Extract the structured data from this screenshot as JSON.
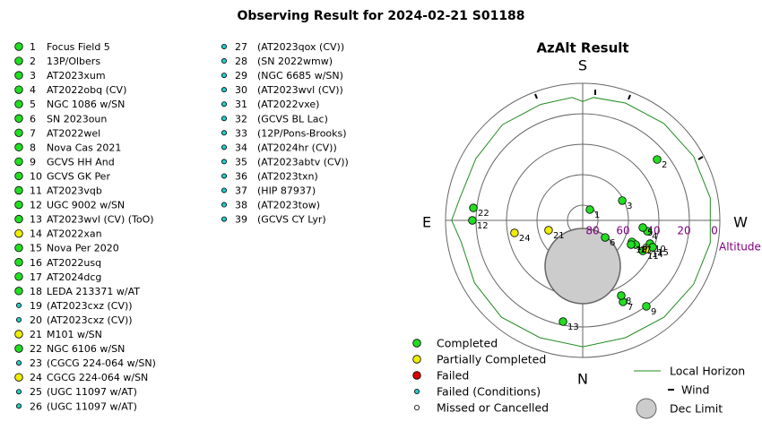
{
  "title": "Observing Result for 2024-02-21 S01188",
  "targets": [
    {
      "number": 1,
      "name": "Focus Field 5",
      "status": 0
    },
    {
      "number": 2,
      "name": "13P/Olbers",
      "status": 0
    },
    {
      "number": 3,
      "name": "AT2023xum",
      "status": 0
    },
    {
      "number": 4,
      "name": "AT2022obq (CV)",
      "status": 0
    },
    {
      "number": 5,
      "name": "NGC 1086 w/SN",
      "status": 0
    },
    {
      "number": 6,
      "name": "SN 2023oun",
      "status": 0
    },
    {
      "number": 7,
      "name": "AT2022wel",
      "status": 0
    },
    {
      "number": 8,
      "name": "Nova Cas 2021",
      "status": 0
    },
    {
      "number": 9,
      "name": "GCVS HH And",
      "status": 0
    },
    {
      "number": 10,
      "name": "GCVS GK Per",
      "status": 0
    },
    {
      "number": 11,
      "name": "AT2023vqb",
      "status": 0
    },
    {
      "number": 12,
      "name": "UGC 9002 w/SN",
      "status": 0
    },
    {
      "number": 13,
      "name": "AT2023wvl (CV) (ToO)",
      "status": 0
    },
    {
      "number": 14,
      "name": "AT2022xan",
      "status": 1
    },
    {
      "number": 15,
      "name": "Nova Per 2020",
      "status": 0
    },
    {
      "number": 16,
      "name": "AT2022usq",
      "status": 0
    },
    {
      "number": 17,
      "name": "AT2024dcg",
      "status": 0
    },
    {
      "number": 18,
      "name": "LEDA 213371 w/AT",
      "status": 0
    },
    {
      "number": 19,
      "name": "(AT2023cxz (CV))",
      "status": 3
    },
    {
      "number": 20,
      "name": "(AT2023cxz (CV))",
      "status": 3
    },
    {
      "number": 21,
      "name": "M101 w/SN",
      "status": 1
    },
    {
      "number": 22,
      "name": "NGC 6106 w/SN",
      "status": 0
    },
    {
      "number": 23,
      "name": "(CGCG 224-064 w/SN)",
      "status": 3
    },
    {
      "number": 24,
      "name": "CGCG 224-064 w/SN",
      "status": 1
    },
    {
      "number": 25,
      "name": "(UGC 11097 w/AT)",
      "status": 3
    },
    {
      "number": 26,
      "name": "(UGC 11097 w/AT)",
      "status": 3
    },
    {
      "number": 27,
      "name": "(AT2023qox (CV))",
      "status": 3
    },
    {
      "number": 28,
      "name": "(SN 2022wmw)",
      "status": 3
    },
    {
      "number": 29,
      "name": "(NGC 6685 w/SN)",
      "status": 3
    },
    {
      "number": 30,
      "name": "(AT2023wvl (CV))",
      "status": 3
    },
    {
      "number": 31,
      "name": "(AT2022vxe)",
      "status": 3
    },
    {
      "number": 32,
      "name": "(GCVS BL Lac)",
      "status": 3
    },
    {
      "number": 33,
      "name": "(12P/Pons-Brooks)",
      "status": 3
    },
    {
      "number": 34,
      "name": "(AT2024hr (CV))",
      "status": 3
    },
    {
      "number": 35,
      "name": "(AT2023abtv (CV))",
      "status": 3
    },
    {
      "number": 36,
      "name": "(AT2023txn)",
      "status": 3
    },
    {
      "number": 37,
      "name": "(HIP 87937)",
      "status": 3
    },
    {
      "number": 38,
      "name": "(AT2023tow)",
      "status": 3
    },
    {
      "number": 39,
      "name": "(GCVS CY Lyr)",
      "status": 3
    }
  ],
  "chart_data": {
    "type": "polar",
    "title": "AzAlt Result",
    "directions": {
      "S": "S",
      "N": "N",
      "E": "E",
      "W": "W"
    },
    "rlim": [
      90,
      0
    ],
    "rticks": [
      80,
      60,
      40,
      20,
      0
    ],
    "r_label": "Altitude",
    "legend": [
      {
        "name": "Completed",
        "color": "#22dd22"
      },
      {
        "name": "Partially Completed",
        "color": "#eeee00"
      },
      {
        "name": "Failed",
        "color": "#dd0000"
      },
      {
        "name": "Failed (Conditions)",
        "color": "#22cccc"
      },
      {
        "name": "Missed or Cancelled",
        "color": "#ffffff"
      }
    ],
    "points": [
      {
        "label": "1",
        "az": 213.7,
        "alt": 81.5,
        "status": 0
      },
      {
        "label": "2",
        "az": 230.7,
        "alt": 26.9,
        "status": 0
      },
      {
        "label": "3",
        "az": 243.4,
        "alt": 61,
        "status": 0
      },
      {
        "label": "4",
        "az": 279.5,
        "alt": 47,
        "status": 0
      },
      {
        "label": "5",
        "az": 276.8,
        "alt": 50.3,
        "status": 0
      },
      {
        "label": "6",
        "az": 307.2,
        "alt": 71.5,
        "status": 0
      },
      {
        "label": "7",
        "az": 333.7,
        "alt": 30.3,
        "status": 0
      },
      {
        "label": "8",
        "az": 332.9,
        "alt": 34.5,
        "status": 0
      },
      {
        "label": "9",
        "az": 323.5,
        "alt": 19.8,
        "status": 0
      },
      {
        "label": "10",
        "az": 289.1,
        "alt": 43.3,
        "status": 0
      },
      {
        "label": "11",
        "az": 296.9,
        "alt": 45.8,
        "status": 0
      },
      {
        "label": "12",
        "az": 90,
        "alt": 17.6,
        "status": 0
      },
      {
        "label": "13",
        "az": 11,
        "alt": 22.3,
        "status": 0
      },
      {
        "label": "14",
        "az": 294,
        "alt": 43.6,
        "status": 1
      },
      {
        "label": "15",
        "az": 291,
        "alt": 40.8,
        "status": 0
      },
      {
        "label": "16",
        "az": 293.6,
        "alt": 54.7,
        "status": 0
      },
      {
        "label": "17",
        "az": 294.6,
        "alt": 51.8,
        "status": 0
      },
      {
        "label": "18",
        "az": 296.6,
        "alt": 54.5,
        "status": 0
      },
      {
        "label": "21",
        "az": 73.9,
        "alt": 66.7,
        "status": 1
      },
      {
        "label": "22",
        "az": 96.5,
        "alt": 17.8,
        "status": 0
      },
      {
        "label": "24",
        "az": 79.6,
        "alt": 44.5,
        "status": 1
      }
    ],
    "horizon": {
      "name": "Local Horizon",
      "color": "#228b22",
      "az": [
        0,
        20,
        40,
        60,
        80,
        90,
        100,
        120,
        140,
        160,
        175,
        180,
        185,
        200,
        220,
        240,
        260,
        280,
        300,
        320,
        340,
        360
      ],
      "alt": [
        7,
        8,
        7,
        8,
        9,
        4,
        8,
        9,
        8,
        9,
        9,
        12,
        9,
        8,
        7,
        6,
        5,
        5,
        6,
        7,
        8,
        7
      ]
    },
    "wind_label": "Wind",
    "dec_limit_label": "Dec Limit"
  }
}
